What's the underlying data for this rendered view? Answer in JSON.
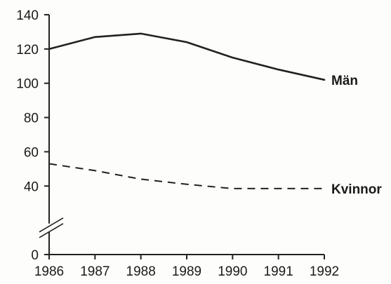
{
  "chart_data": {
    "type": "line",
    "title": "",
    "xlabel": "",
    "ylabel": "",
    "x": [
      1986,
      1987,
      1988,
      1989,
      1990,
      1991,
      1992
    ],
    "xlim": [
      1986,
      1992
    ],
    "ylim": [
      0,
      140
    ],
    "y_ticks": [
      0,
      40,
      60,
      80,
      100,
      120,
      140
    ],
    "y_axis_break": true,
    "grid": false,
    "legend": "none",
    "series": [
      {
        "name": "Män",
        "values": [
          120,
          127,
          129,
          124,
          115,
          108,
          102
        ],
        "style": "solid",
        "color": "#222222"
      },
      {
        "name": "Kvinnor",
        "values": [
          53,
          49,
          44,
          41,
          38.5,
          38.5,
          38.5
        ],
        "style": "dashed",
        "color": "#222222"
      }
    ]
  }
}
